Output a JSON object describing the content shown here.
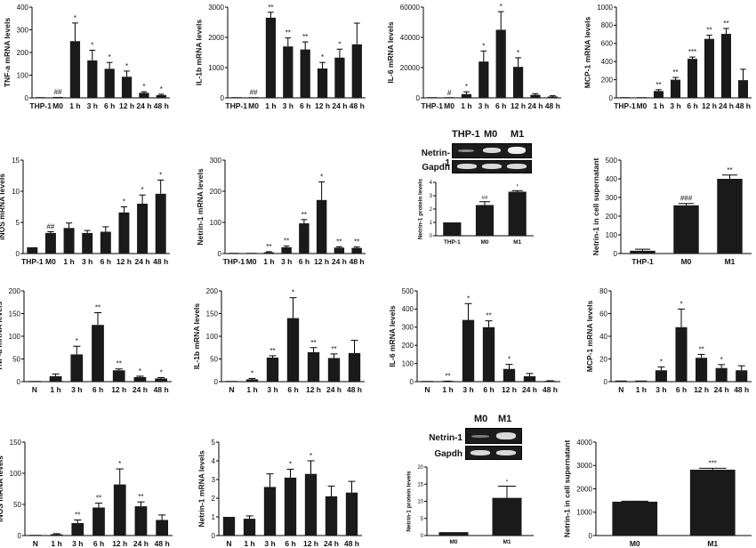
{
  "figure": {
    "colors": {
      "bar": "#1a1a1a",
      "axis": "#000000",
      "text": "#111111"
    },
    "blots": [
      {
        "columns": [
          "THP-1",
          "M0",
          "M1"
        ],
        "rows": [
          "Netrin-1",
          "Gapdh"
        ]
      },
      {
        "columns": [
          "M0",
          "M1"
        ],
        "rows": [
          "Netrin-1",
          "Gapdh"
        ]
      }
    ]
  },
  "chart_data": [
    {
      "type": "bar",
      "ylabel": "TNF-a mRNA levels",
      "ylim": [
        0,
        400
      ],
      "yticks": [
        0,
        100,
        200,
        300,
        400
      ],
      "categories": [
        "THP-1",
        "M0",
        "1 h",
        "3 h",
        "6 h",
        "12 h",
        "24 h",
        "48 h"
      ],
      "values": [
        2,
        4,
        250,
        165,
        128,
        93,
        22,
        12
      ],
      "errors": [
        0,
        0,
        80,
        45,
        28,
        25,
        5,
        4
      ],
      "annotations": [
        "",
        "##",
        "*",
        "*",
        "*",
        "*",
        "*",
        "*"
      ]
    },
    {
      "type": "bar",
      "ylabel": "IL-1b mRNA levels",
      "ylim": [
        0,
        3000
      ],
      "yticks": [
        0,
        1000,
        2000,
        3000
      ],
      "categories": [
        "THP-1",
        "M0",
        "1 h",
        "3 h",
        "6 h",
        "12 h",
        "24 h",
        "48 h"
      ],
      "values": [
        5,
        10,
        2650,
        1700,
        1600,
        970,
        1330,
        1770
      ],
      "errors": [
        0,
        0,
        180,
        280,
        250,
        200,
        280,
        700
      ],
      "annotations": [
        "",
        "##",
        "**",
        "**",
        "**",
        "*",
        "*",
        ""
      ]
    },
    {
      "type": "bar",
      "ylabel": "IL-6 mRNA levels",
      "ylim": [
        0,
        60000
      ],
      "yticks": [
        0,
        20000,
        40000,
        60000
      ],
      "categories": [
        "THP-1",
        "M0",
        "1 h",
        "3 h",
        "6 h",
        "12 h",
        "24 h",
        "48 h"
      ],
      "values": [
        20,
        100,
        2500,
        24000,
        45000,
        20500,
        2000,
        900
      ],
      "errors": [
        0,
        0,
        1500,
        7000,
        12000,
        6000,
        800,
        500
      ],
      "annotations": [
        "",
        "#",
        "*",
        "*",
        "*",
        "*",
        "",
        ""
      ]
    },
    {
      "type": "bar",
      "ylabel": "MCP-1 mRNA levels",
      "ylim": [
        0,
        1000
      ],
      "yticks": [
        0,
        200,
        400,
        600,
        800,
        1000
      ],
      "categories": [
        "THP-1",
        "M0",
        "1 h",
        "3 h",
        "6 h",
        "12 h",
        "24 h",
        "48 h"
      ],
      "values": [
        2,
        5,
        75,
        200,
        430,
        650,
        705,
        195
      ],
      "errors": [
        0,
        0,
        15,
        25,
        20,
        40,
        60,
        120
      ],
      "annotations": [
        "",
        "",
        "**",
        "**",
        "***",
        "**",
        "**",
        ""
      ]
    },
    {
      "type": "bar",
      "ylabel": "iNOS mRNA levels",
      "ylim": [
        0,
        15
      ],
      "yticks": [
        0,
        5,
        10,
        15
      ],
      "categories": [
        "THP-1",
        "M0",
        "1 h",
        "3 h",
        "6 h",
        "12 h",
        "24 h",
        "48 h"
      ],
      "values": [
        1,
        3.3,
        4.1,
        3.3,
        3.5,
        6.6,
        8.0,
        9.6
      ],
      "errors": [
        0,
        0.2,
        0.8,
        0.4,
        0.8,
        0.9,
        1.4,
        2.2
      ],
      "annotations": [
        "",
        "##",
        "",
        "",
        "",
        "*",
        "*",
        "*"
      ]
    },
    {
      "type": "bar",
      "ylabel": "Netrin-1 mRNA levels",
      "ylim": [
        0,
        300
      ],
      "yticks": [
        0,
        100,
        200,
        300
      ],
      "categories": [
        "THP-1",
        "M0",
        "1 h",
        "3 h",
        "6 h",
        "12 h",
        "24 h",
        "48 h"
      ],
      "values": [
        1,
        1,
        4,
        20,
        97,
        172,
        19,
        18
      ],
      "errors": [
        0,
        0,
        2,
        4,
        12,
        58,
        3,
        3
      ],
      "annotations": [
        "",
        "",
        "**",
        "**",
        "**",
        "*",
        "**",
        "**"
      ]
    },
    {
      "type": "bar",
      "ylabel": "Netrin-1 protein levels",
      "ylim": [
        0,
        4
      ],
      "yticks": [
        0,
        1,
        2,
        3,
        4
      ],
      "categories": [
        "THP-1",
        "M0",
        "M1"
      ],
      "values": [
        1,
        2.3,
        3.3
      ],
      "errors": [
        0,
        0.25,
        0.08
      ],
      "annotations": [
        "",
        "##",
        "*"
      ]
    },
    {
      "type": "bar",
      "ylabel": "Netrin-1 in cell supernatant",
      "ylim": [
        0,
        500
      ],
      "yticks": [
        0,
        100,
        200,
        300,
        400,
        500
      ],
      "categories": [
        "THP-1",
        "M0",
        "M1"
      ],
      "values": [
        15,
        258,
        400
      ],
      "errors": [
        8,
        10,
        20
      ],
      "annotations": [
        "",
        "###",
        "**"
      ]
    },
    {
      "type": "bar",
      "ylabel": "TNF-a mRNA levels",
      "ylim": [
        0,
        200
      ],
      "yticks": [
        0,
        50,
        100,
        150,
        200
      ],
      "categories": [
        "N",
        "1 h",
        "3 h",
        "6 h",
        "12 h",
        "24 h",
        "48 h"
      ],
      "values": [
        1,
        12,
        60,
        125,
        25,
        10,
        7
      ],
      "errors": [
        0,
        5,
        18,
        27,
        3,
        2,
        2
      ],
      "annotations": [
        "",
        "",
        "*",
        "**",
        "**",
        "*",
        "*"
      ]
    },
    {
      "type": "bar",
      "ylabel": "IL-1b mRNA levels",
      "ylim": [
        0,
        200
      ],
      "yticks": [
        0,
        50,
        100,
        150,
        200
      ],
      "categories": [
        "N",
        "1 h",
        "3 h",
        "6 h",
        "12 h",
        "24 h",
        "48 h"
      ],
      "values": [
        1,
        5,
        53,
        140,
        65,
        52,
        63
      ],
      "errors": [
        0,
        2,
        4,
        45,
        10,
        9,
        28
      ],
      "annotations": [
        "",
        "*",
        "**",
        "*",
        "**",
        "**",
        ""
      ]
    },
    {
      "type": "bar",
      "ylabel": "IL-6 mRNA levels",
      "ylim": [
        0,
        500
      ],
      "yticks": [
        0,
        100,
        200,
        300,
        400,
        500
      ],
      "categories": [
        "N",
        "1 h",
        "3 h",
        "6 h",
        "12 h",
        "24 h",
        "48 h"
      ],
      "values": [
        1,
        2,
        340,
        300,
        70,
        30,
        3
      ],
      "errors": [
        0,
        1,
        90,
        35,
        25,
        15,
        2
      ],
      "annotations": [
        "",
        "**",
        "*",
        "**",
        "*",
        "",
        ""
      ]
    },
    {
      "type": "bar",
      "ylabel": "MCP-1 mRNA levels",
      "ylim": [
        0,
        80
      ],
      "yticks": [
        0,
        20,
        40,
        60,
        80
      ],
      "categories": [
        "N",
        "1 h",
        "3 h",
        "6 h",
        "12 h",
        "24 h",
        "48 h"
      ],
      "values": [
        1,
        1,
        10,
        48,
        21,
        12,
        10
      ],
      "errors": [
        0,
        0,
        3,
        16,
        3,
        3,
        4
      ],
      "annotations": [
        "",
        "",
        "*",
        "*",
        "**",
        "*",
        ""
      ]
    },
    {
      "type": "bar",
      "ylabel": "iNOS mRNA levels",
      "ylim": [
        0,
        150
      ],
      "yticks": [
        0,
        50,
        100,
        150
      ],
      "categories": [
        "N",
        "1 h",
        "3 h",
        "6 h",
        "12 h",
        "24 h",
        "48 h"
      ],
      "values": [
        1,
        2,
        20,
        45,
        82,
        47,
        25
      ],
      "errors": [
        0,
        1,
        5,
        7,
        25,
        7,
        8
      ],
      "annotations": [
        "",
        "",
        "**",
        "**",
        "*",
        "**",
        ""
      ]
    },
    {
      "type": "bar",
      "ylabel": "Netrin-1 mRNA levels",
      "ylim": [
        0,
        5
      ],
      "yticks": [
        0,
        1,
        2,
        3,
        4,
        5
      ],
      "categories": [
        "N",
        "1 h",
        "3 h",
        "6 h",
        "12 h",
        "24 h",
        "48 h"
      ],
      "values": [
        1,
        0.9,
        2.6,
        3.1,
        3.3,
        2.1,
        2.3
      ],
      "errors": [
        0,
        0.15,
        0.7,
        0.45,
        0.7,
        0.55,
        0.6
      ],
      "annotations": [
        "",
        "",
        "",
        "*",
        "*",
        "",
        ""
      ]
    },
    {
      "type": "bar",
      "ylabel": "Netrin-1 protein levels",
      "ylim": [
        0,
        20
      ],
      "yticks": [
        0,
        5,
        10,
        15,
        20
      ],
      "categories": [
        "M0",
        "M1"
      ],
      "values": [
        1,
        11
      ],
      "errors": [
        0,
        3.4
      ],
      "annotations": [
        "",
        "*"
      ]
    },
    {
      "type": "bar",
      "ylabel": "Netrin-1 in cell supernatant",
      "ylim": [
        0,
        4000
      ],
      "yticks": [
        0,
        1000,
        2000,
        3000,
        4000
      ],
      "categories": [
        "M0",
        "M1"
      ],
      "values": [
        1450,
        2820
      ],
      "errors": [
        20,
        60
      ],
      "annotations": [
        "",
        "***"
      ]
    }
  ]
}
